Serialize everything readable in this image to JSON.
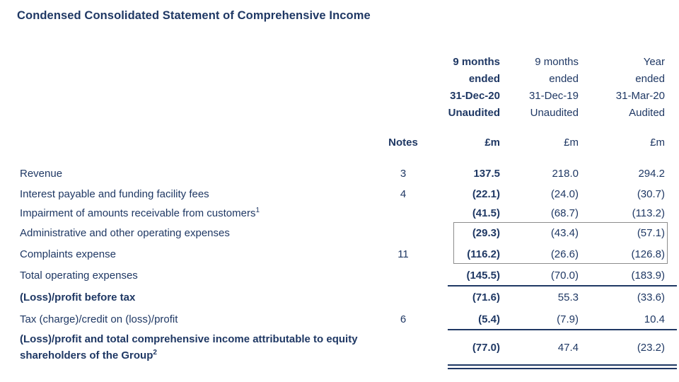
{
  "title": "Condensed Consolidated Statement of Comprehensive Income",
  "colors": {
    "text": "#1f3864",
    "rule": "#1f3864",
    "boxborder": "#8c8c8c",
    "bg": "#ffffff"
  },
  "table": {
    "header": {
      "notes_label": "Notes",
      "col1": "9 months\nended\n31-Dec-20\nUnaudited",
      "col2": "9 months\nended\n31-Dec-19\nUnaudited",
      "col3": "Year\nended\n31-Mar-20\nAudited",
      "unit1": "£m",
      "unit2": "£m",
      "unit3": "£m"
    },
    "rows": [
      {
        "label": "Revenue",
        "notes": "3",
        "v1": "137.5",
        "v2": "218.0",
        "v3": "294.2"
      },
      {
        "label": "Interest payable and funding facility fees",
        "notes": "4",
        "v1": "(22.1)",
        "v2": "(24.0)",
        "v3": "(30.7)"
      },
      {
        "label": "Impairment of amounts receivable from customers",
        "sup": "1",
        "notes": "",
        "v1": "(41.5)",
        "v2": "(68.7)",
        "v3": "(113.2)"
      },
      {
        "label": "Administrative and other operating expenses",
        "notes": "",
        "v1": "(29.3)",
        "v2": "(43.4)",
        "v3": "(57.1)"
      },
      {
        "label": "Complaints expense",
        "notes": "11",
        "v1": "(116.2)",
        "v2": "(26.6)",
        "v3": "(126.8)"
      },
      {
        "label": "Total operating expenses",
        "notes": "",
        "v1": "(145.5)",
        "v2": "(70.0)",
        "v3": "(183.9)"
      },
      {
        "label": "(Loss)/profit before tax",
        "notes": "",
        "v1": "(71.6)",
        "v2": "55.3",
        "v3": "(33.6)"
      },
      {
        "label": "Tax (charge)/credit on (loss)/profit",
        "notes": "6",
        "v1": "(5.4)",
        "v2": "(7.9)",
        "v3": "10.4"
      },
      {
        "label": "(Loss)/profit and total comprehensive income attributable to equity shareholders of the Group",
        "sup": "2",
        "notes": "",
        "v1": "(77.0)",
        "v2": "47.4",
        "v3": "(23.2)"
      }
    ]
  }
}
